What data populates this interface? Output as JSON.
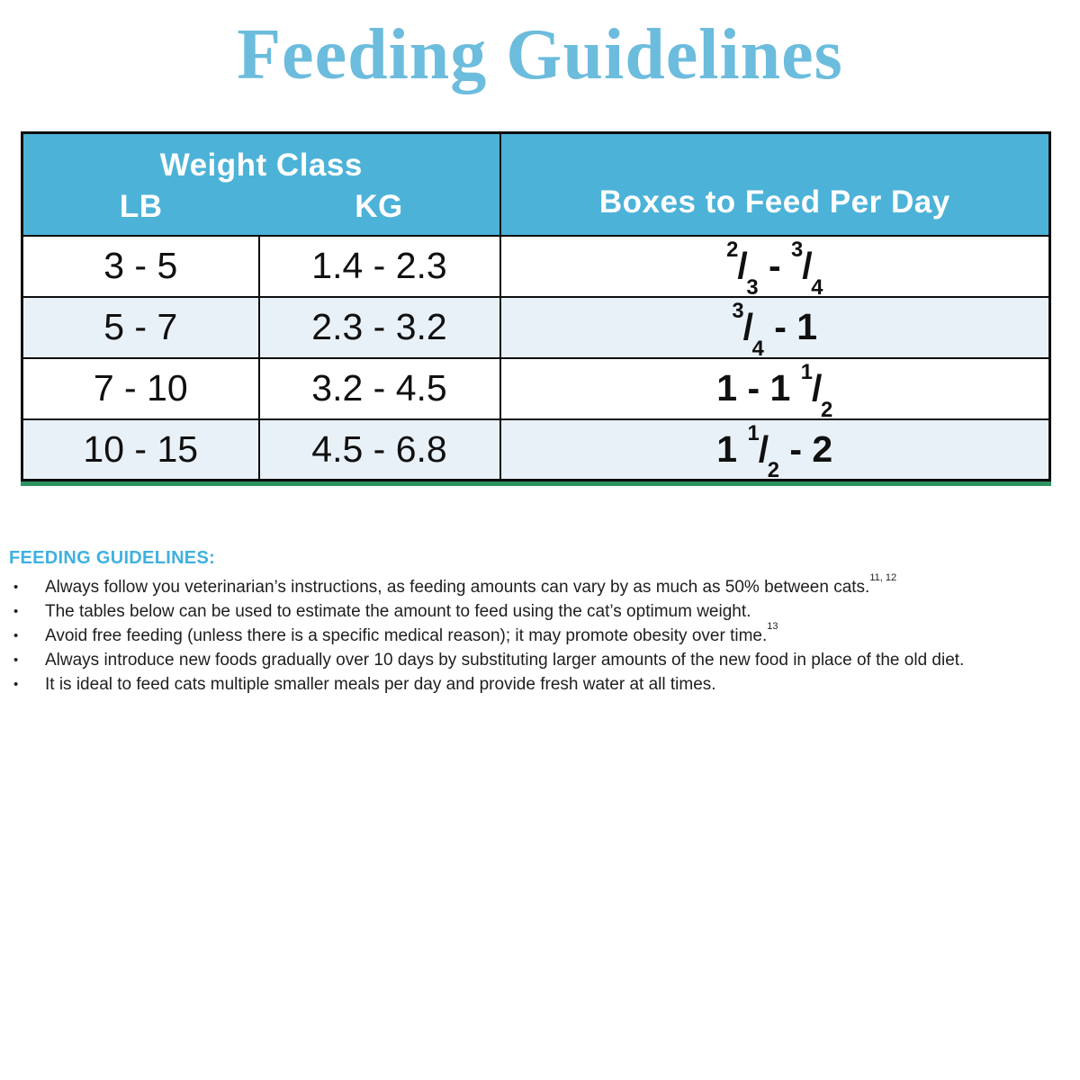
{
  "title": "Feeding Guidelines",
  "colors": {
    "title": "#6cbcdd",
    "header_bg": "#4db2d8",
    "row_alt": "#e9f1f8",
    "table_border": "#0d0d0d",
    "bottom_edge_green": "#2e9160",
    "section_heading": "#3fb1e0"
  },
  "table": {
    "header": {
      "weight_class": "Weight Class",
      "lb": "LB",
      "kg": "KG",
      "boxes": "Boxes to Feed Per Day"
    },
    "rows": [
      {
        "lb": "3 - 5",
        "kg": "1.4 - 2.3",
        "boxes": "2/3 - 3/4"
      },
      {
        "lb": "5 - 7",
        "kg": "2.3 - 3.2",
        "boxes": "3/4 - 1"
      },
      {
        "lb": "7 - 10",
        "kg": "3.2 - 4.5",
        "boxes": "1 - 1 1/2"
      },
      {
        "lb": "10 - 15",
        "kg": "4.5 - 6.8",
        "boxes": "1 1/2 - 2"
      }
    ]
  },
  "guidelines": {
    "heading": "FEEDING GUIDELINES:",
    "bullets": [
      {
        "text": "Always follow you veterinarian’s instructions, as feeding amounts can vary by as much as 50% between cats.",
        "citation": "11, 12"
      },
      {
        "text": "The tables below can be used to estimate the amount to feed using the cat’s optimum weight.",
        "citation": ""
      },
      {
        "text": "Avoid free feeding (unless there is a specific medical reason); it may promote obesity over time.",
        "citation": "13"
      },
      {
        "text": "Always introduce new foods gradually over 10 days by substituting larger amounts of the new food in place of the old diet.",
        "citation": ""
      },
      {
        "text": "It is ideal to feed cats multiple smaller meals per day and provide fresh water at all times.",
        "citation": ""
      }
    ]
  }
}
